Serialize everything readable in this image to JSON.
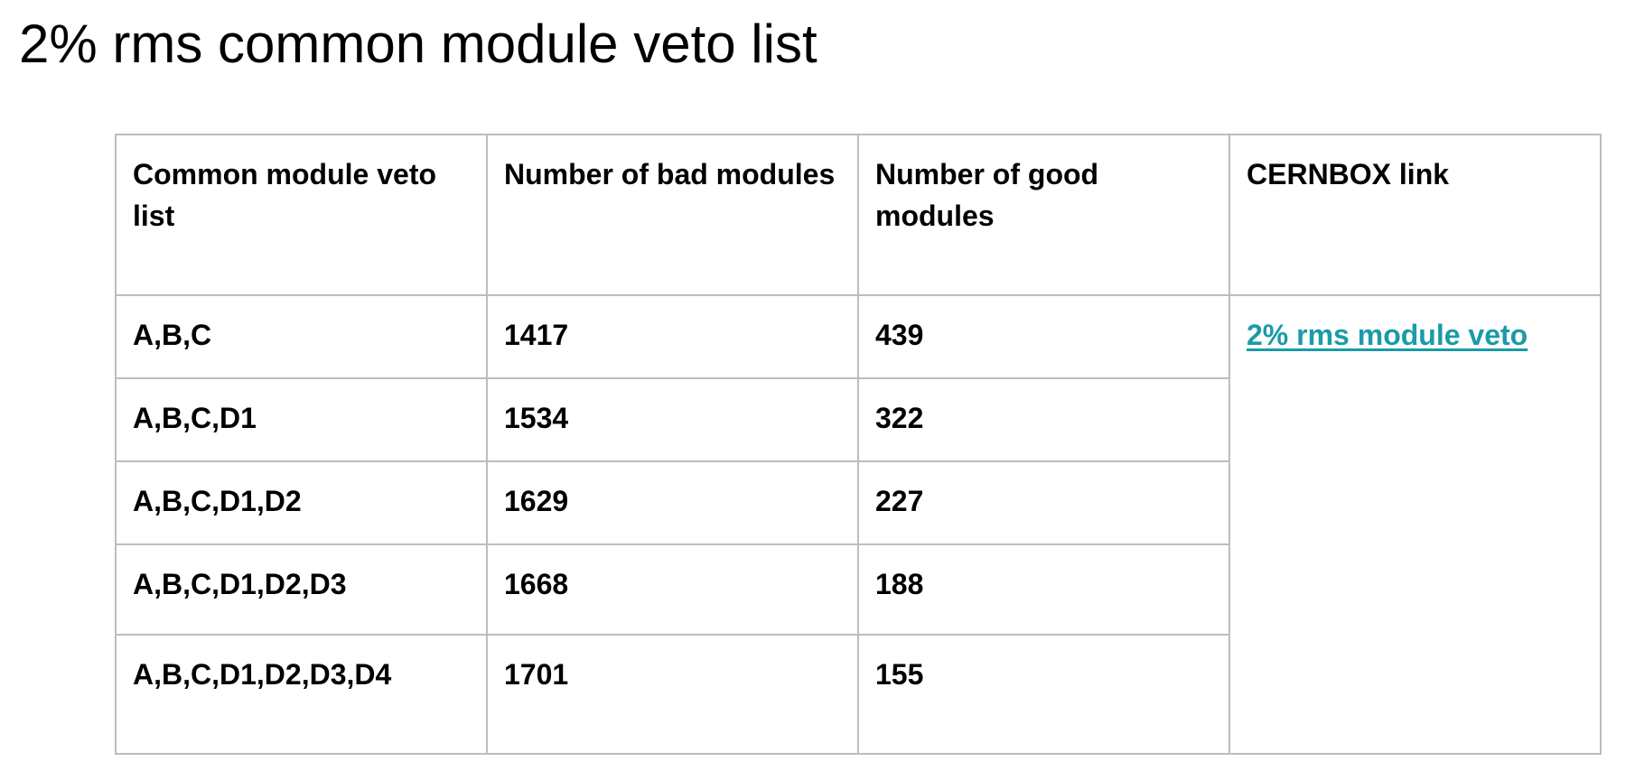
{
  "page": {
    "title": "2% rms common module veto list"
  },
  "table": {
    "headers": {
      "veto_list": "Common module veto list",
      "bad_modules": "Number of bad modules",
      "good_modules": "Number of good modules",
      "cernbox_link": "CERNBOX link"
    },
    "rows": [
      {
        "veto_list": "A,B,C",
        "bad_modules": "1417",
        "good_modules": "439"
      },
      {
        "veto_list": "A,B,C,D1",
        "bad_modules": "1534",
        "good_modules": "322"
      },
      {
        "veto_list": "A,B,C,D1,D2",
        "bad_modules": "1629",
        "good_modules": "227"
      },
      {
        "veto_list": "A,B,C,D1,D2,D3",
        "bad_modules": "1668",
        "good_modules": "188"
      },
      {
        "veto_list": "A,B,C,D1,D2,D3,D4",
        "bad_modules": "1701",
        "good_modules": "155"
      }
    ],
    "link_text": "2% rms module veto"
  },
  "colors": {
    "link": "#1a9ba8",
    "border": "#bdbdbd",
    "text": "#000000",
    "background": "#ffffff"
  }
}
